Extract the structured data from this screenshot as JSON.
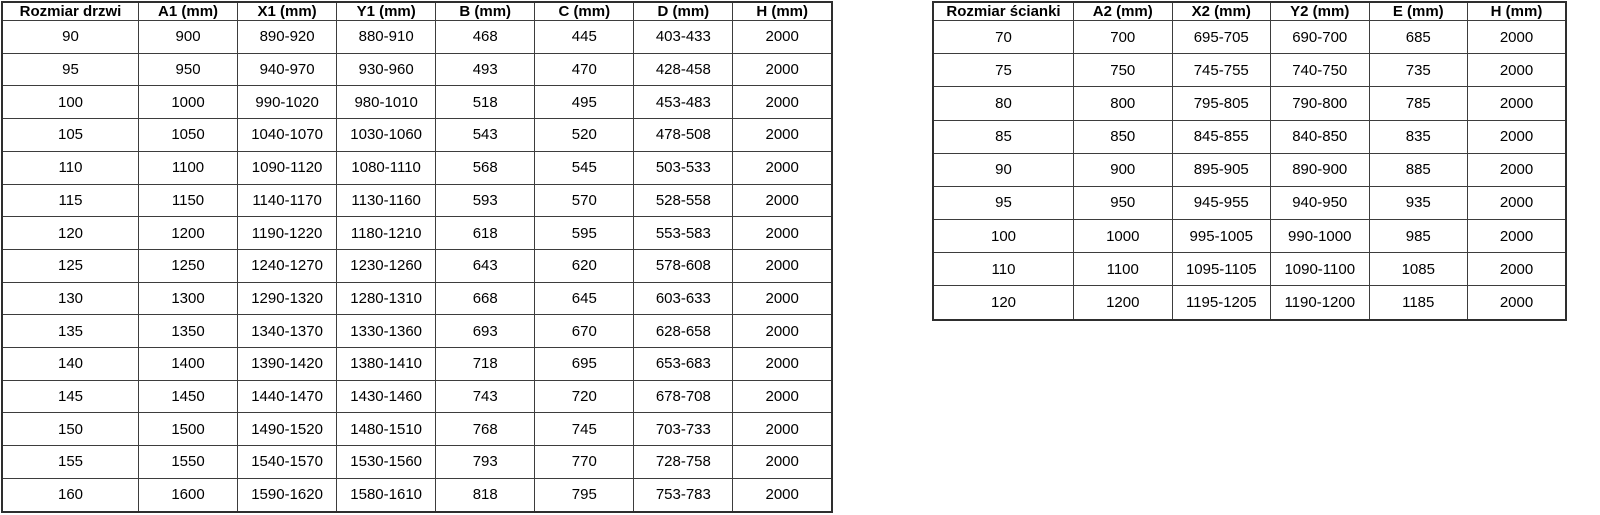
{
  "colors": {
    "background": "#ffffff",
    "border_outer": "#2e2e2e",
    "border_inner": "#3d3d3d",
    "text": "#000000"
  },
  "door_table": {
    "headers": [
      "Rozmiar drzwi",
      "A1 (mm)",
      "X1 (mm)",
      "Y1 (mm)",
      "B (mm)",
      "C (mm)",
      "D (mm)",
      "H (mm)"
    ],
    "rows": [
      [
        "90",
        "900",
        "890-920",
        "880-910",
        "468",
        "445",
        "403-433",
        "2000"
      ],
      [
        "95",
        "950",
        "940-970",
        "930-960",
        "493",
        "470",
        "428-458",
        "2000"
      ],
      [
        "100",
        "1000",
        "990-1020",
        "980-1010",
        "518",
        "495",
        "453-483",
        "2000"
      ],
      [
        "105",
        "1050",
        "1040-1070",
        "1030-1060",
        "543",
        "520",
        "478-508",
        "2000"
      ],
      [
        "110",
        "1100",
        "1090-1120",
        "1080-1110",
        "568",
        "545",
        "503-533",
        "2000"
      ],
      [
        "115",
        "1150",
        "1140-1170",
        "1130-1160",
        "593",
        "570",
        "528-558",
        "2000"
      ],
      [
        "120",
        "1200",
        "1190-1220",
        "1180-1210",
        "618",
        "595",
        "553-583",
        "2000"
      ],
      [
        "125",
        "1250",
        "1240-1270",
        "1230-1260",
        "643",
        "620",
        "578-608",
        "2000"
      ],
      [
        "130",
        "1300",
        "1290-1320",
        "1280-1310",
        "668",
        "645",
        "603-633",
        "2000"
      ],
      [
        "135",
        "1350",
        "1340-1370",
        "1330-1360",
        "693",
        "670",
        "628-658",
        "2000"
      ],
      [
        "140",
        "1400",
        "1390-1420",
        "1380-1410",
        "718",
        "695",
        "653-683",
        "2000"
      ],
      [
        "145",
        "1450",
        "1440-1470",
        "1430-1460",
        "743",
        "720",
        "678-708",
        "2000"
      ],
      [
        "150",
        "1500",
        "1490-1520",
        "1480-1510",
        "768",
        "745",
        "703-733",
        "2000"
      ],
      [
        "155",
        "1550",
        "1540-1570",
        "1530-1560",
        "793",
        "770",
        "728-758",
        "2000"
      ],
      [
        "160",
        "1600",
        "1590-1620",
        "1580-1610",
        "818",
        "795",
        "753-783",
        "2000"
      ]
    ]
  },
  "wall_table": {
    "headers": [
      "Rozmiar ścianki",
      "A2 (mm)",
      "X2 (mm)",
      "Y2 (mm)",
      "E (mm)",
      "H (mm)"
    ],
    "rows": [
      [
        "70",
        "700",
        "695-705",
        "690-700",
        "685",
        "2000"
      ],
      [
        "75",
        "750",
        "745-755",
        "740-750",
        "735",
        "2000"
      ],
      [
        "80",
        "800",
        "795-805",
        "790-800",
        "785",
        "2000"
      ],
      [
        "85",
        "850",
        "845-855",
        "840-850",
        "835",
        "2000"
      ],
      [
        "90",
        "900",
        "895-905",
        "890-900",
        "885",
        "2000"
      ],
      [
        "95",
        "950",
        "945-955",
        "940-950",
        "935",
        "2000"
      ],
      [
        "100",
        "1000",
        "995-1005",
        "990-1000",
        "985",
        "2000"
      ],
      [
        "110",
        "1100",
        "1095-1105",
        "1090-1100",
        "1085",
        "2000"
      ],
      [
        "120",
        "1200",
        "1195-1205",
        "1190-1200",
        "1185",
        "2000"
      ]
    ]
  }
}
